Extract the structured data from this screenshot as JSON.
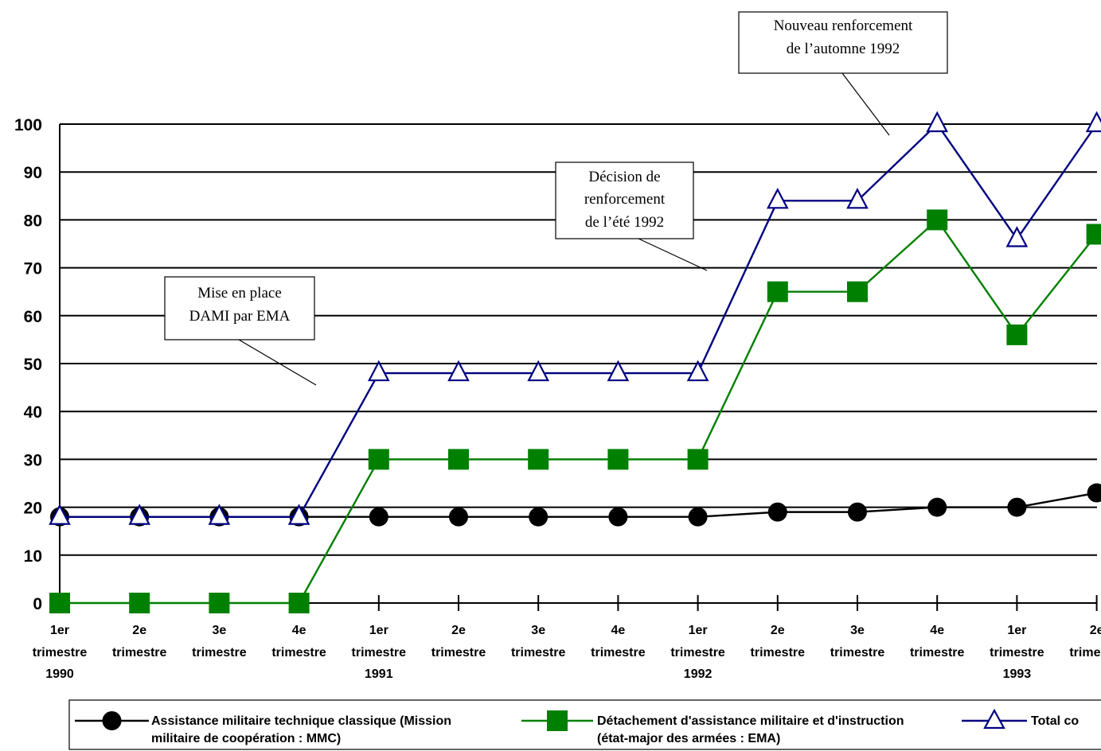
{
  "chart_data": {
    "type": "line",
    "title": "",
    "xlabel": "",
    "ylabel": "",
    "ylim": [
      0,
      100
    ],
    "yticks": [
      "0",
      "10",
      "20",
      "30",
      "40",
      "50",
      "60",
      "70",
      "80",
      "90",
      "100"
    ],
    "categories": [
      [
        "1er",
        "trimestre",
        "1990"
      ],
      [
        "2e",
        "trimestre"
      ],
      [
        "3e",
        "trimestre"
      ],
      [
        "4e",
        "trimestre"
      ],
      [
        "1er",
        "trimestre",
        "1991"
      ],
      [
        "2e",
        "trimestre"
      ],
      [
        "3e",
        "trimestre"
      ],
      [
        "4e",
        "trimestre"
      ],
      [
        "1er",
        "trimestre",
        "1992"
      ],
      [
        "2e",
        "trimestre"
      ],
      [
        "3e",
        "trimestre"
      ],
      [
        "4e",
        "trimestre"
      ],
      [
        "1er",
        "trimestre",
        "1993"
      ],
      [
        "2e",
        "trimestre"
      ]
    ],
    "grid": true,
    "legend_position": "bottom",
    "series": [
      {
        "name": "Assistance militaire technique classique (Mission militaire de coopération : MMC)",
        "legend_lines": [
          "Assistance militaire technique classique (Mission",
          "militaire de coopération : MMC)"
        ],
        "marker": "circle",
        "color": "#000000",
        "values": [
          18,
          18,
          18,
          18,
          18,
          18,
          18,
          18,
          18,
          19,
          19,
          20,
          20,
          23
        ]
      },
      {
        "name": "Détachement d'assistance militaire et d'instruction (état-major des armées : EMA)",
        "legend_lines": [
          "Détachement d'assistance militaire et d'instruction",
          "(état-major des armées : EMA)"
        ],
        "marker": "square",
        "color": "#008000",
        "values": [
          0,
          0,
          0,
          0,
          30,
          30,
          30,
          30,
          30,
          65,
          65,
          80,
          56,
          77
        ]
      },
      {
        "name": "Total co",
        "legend_lines": [
          "Total co"
        ],
        "marker": "triangle",
        "color": "#000080",
        "values": [
          18,
          18,
          18,
          18,
          48,
          48,
          48,
          48,
          48,
          84,
          84,
          100,
          76,
          100
        ]
      }
    ],
    "annotations": [
      {
        "lines": [
          "Mise en place",
          "DAMI par EMA"
        ]
      },
      {
        "lines": [
          "Décision de",
          "renforcement",
          "de l’été 1992"
        ]
      },
      {
        "lines": [
          "Nouveau renforcement",
          "de l’automne 1992"
        ]
      }
    ]
  }
}
